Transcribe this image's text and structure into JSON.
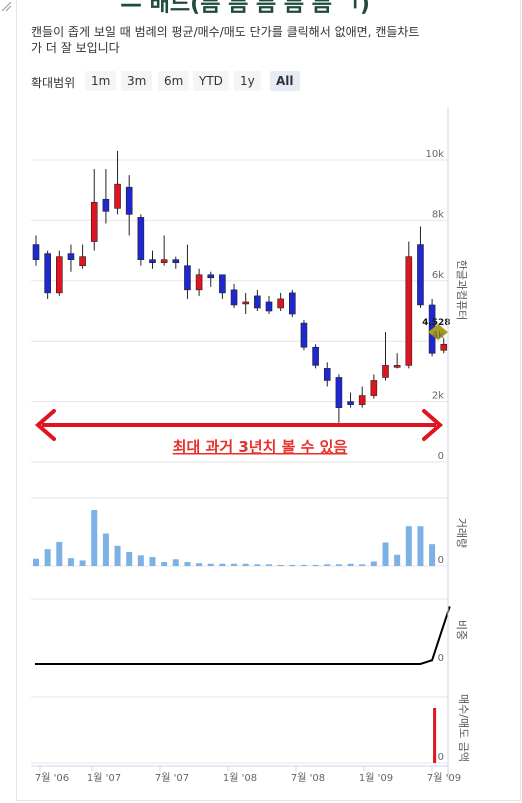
{
  "header": {
    "title_partial": "— 배드(틈 틈 틈 틈 틈 ㄱ)",
    "description": "캔들이 좁게 보일 때 범례의 평균/매수/매도 단가를 클릭해서 없애면, 캔들차트가 더 잘 보입니다"
  },
  "range_selector": {
    "label": "확대범위",
    "buttons": [
      "1m",
      "3m",
      "6m",
      "YTD",
      "1y",
      "All"
    ],
    "active": "All"
  },
  "annotation": {
    "text": "최대 과거 3년치 볼 수 있음",
    "color": "#e8302a"
  },
  "colors": {
    "up": "#e0141e",
    "down": "#1e28d2",
    "volume": "#7cb1e6",
    "trade": "#e0141e",
    "ratio": "#000000",
    "flag": "#a8a017"
  },
  "chart_data": [
    {
      "type": "candlestick",
      "ylabel": "한글과컴퓨터",
      "yticks": [
        0,
        2000,
        4000,
        6000,
        8000,
        10000
      ],
      "ytick_labels": [
        "0",
        "2k",
        "4k",
        "6k",
        "8k",
        "10k"
      ],
      "ylim": [
        0,
        10000
      ],
      "current_price_label": "4,528",
      "x_labels": [
        "7월 '06",
        "1월 '07",
        "7월 '07",
        "1월 '08",
        "7월 '08",
        "1월 '09",
        "7월 '09"
      ],
      "candles": [
        {
          "o": 7200,
          "c": 6700,
          "h": 7500,
          "l": 6500
        },
        {
          "o": 6900,
          "c": 5600,
          "h": 7000,
          "l": 5400
        },
        {
          "o": 5600,
          "c": 6800,
          "h": 7000,
          "l": 5500
        },
        {
          "o": 6900,
          "c": 6700,
          "h": 7200,
          "l": 6300
        },
        {
          "o": 6500,
          "c": 6800,
          "h": 7200,
          "l": 6400
        },
        {
          "o": 7300,
          "c": 8600,
          "h": 9700,
          "l": 7000
        },
        {
          "o": 8700,
          "c": 8300,
          "h": 9700,
          "l": 7900
        },
        {
          "o": 8400,
          "c": 9200,
          "h": 10300,
          "l": 8200
        },
        {
          "o": 9100,
          "c": 8200,
          "h": 9500,
          "l": 7500
        },
        {
          "o": 8100,
          "c": 6700,
          "h": 8200,
          "l": 6500
        },
        {
          "o": 6700,
          "c": 6600,
          "h": 7000,
          "l": 6400
        },
        {
          "o": 6600,
          "c": 6700,
          "h": 7500,
          "l": 6500
        },
        {
          "o": 6700,
          "c": 6600,
          "h": 6800,
          "l": 6400
        },
        {
          "o": 6500,
          "c": 5700,
          "h": 7200,
          "l": 5400
        },
        {
          "o": 5700,
          "c": 6200,
          "h": 6400,
          "l": 5500
        },
        {
          "o": 6200,
          "c": 6100,
          "h": 6300,
          "l": 5800
        },
        {
          "o": 6200,
          "c": 5600,
          "h": 6200,
          "l": 5400
        },
        {
          "o": 5700,
          "c": 5200,
          "h": 5900,
          "l": 5100
        },
        {
          "o": 5300,
          "c": 5300,
          "h": 5600,
          "l": 4900
        },
        {
          "o": 5500,
          "c": 5100,
          "h": 5700,
          "l": 5000
        },
        {
          "o": 5300,
          "c": 5000,
          "h": 5500,
          "l": 4900
        },
        {
          "o": 5100,
          "c": 5400,
          "h": 5600,
          "l": 5000
        },
        {
          "o": 5600,
          "c": 4900,
          "h": 5700,
          "l": 4800
        },
        {
          "o": 4600,
          "c": 3800,
          "h": 4700,
          "l": 3700
        },
        {
          "o": 3800,
          "c": 3200,
          "h": 3900,
          "l": 3100
        },
        {
          "o": 3100,
          "c": 2700,
          "h": 3300,
          "l": 2500
        },
        {
          "o": 2800,
          "c": 1800,
          "h": 2900,
          "l": 1300
        },
        {
          "o": 2000,
          "c": 1900,
          "h": 2300,
          "l": 1800
        },
        {
          "o": 1900,
          "c": 2200,
          "h": 2500,
          "l": 1800
        },
        {
          "o": 2200,
          "c": 2700,
          "h": 2900,
          "l": 2100
        },
        {
          "o": 2800,
          "c": 3200,
          "h": 4300,
          "l": 2700
        },
        {
          "o": 3200,
          "c": 3200,
          "h": 3600,
          "l": 3100
        },
        {
          "o": 3200,
          "c": 6800,
          "h": 7300,
          "l": 3100
        },
        {
          "o": 7200,
          "c": 5200,
          "h": 7800,
          "l": 5100
        },
        {
          "o": 5200,
          "c": 3600,
          "h": 5400,
          "l": 3500
        },
        {
          "o": 3700,
          "c": 3900,
          "h": 4100,
          "l": 3600
        }
      ]
    },
    {
      "type": "bar",
      "ylabel": "거래량",
      "ytick_labels": [
        "0"
      ],
      "ylim": [
        0,
        1
      ],
      "values": [
        0.13,
        0.3,
        0.43,
        0.14,
        0.1,
        1.0,
        0.58,
        0.36,
        0.25,
        0.19,
        0.16,
        0.07,
        0.12,
        0.07,
        0.05,
        0.04,
        0.04,
        0.04,
        0.04,
        0.03,
        0.03,
        0.02,
        0.02,
        0.02,
        0.02,
        0.03,
        0.03,
        0.04,
        0.03,
        0.08,
        0.42,
        0.2,
        0.71,
        0.71,
        0.39,
        0.0
      ]
    },
    {
      "type": "line",
      "ylabel": "비중",
      "ytick_labels": [
        "0"
      ],
      "ylim": [
        0,
        1
      ],
      "values": [
        0,
        0,
        0,
        0,
        0,
        0,
        0,
        0,
        0,
        0,
        0,
        0,
        0,
        0,
        0,
        0,
        0,
        0,
        0,
        0,
        0,
        0,
        0,
        0,
        0,
        0,
        0,
        0,
        0,
        0,
        0,
        0,
        0,
        0,
        0.06,
        0.9
      ]
    },
    {
      "type": "bar",
      "ylabel": "매수/매도 금액",
      "ytick_labels": [
        "0"
      ],
      "ylim": [
        0,
        1
      ],
      "values": [
        0,
        0,
        0,
        0,
        0,
        0,
        0,
        0,
        0,
        0,
        0,
        0,
        0,
        0,
        0,
        0,
        0,
        0,
        0,
        0,
        0,
        0,
        0,
        0,
        0,
        0,
        0,
        0,
        0,
        0,
        0,
        0,
        0,
        0,
        1.0,
        0
      ]
    }
  ]
}
